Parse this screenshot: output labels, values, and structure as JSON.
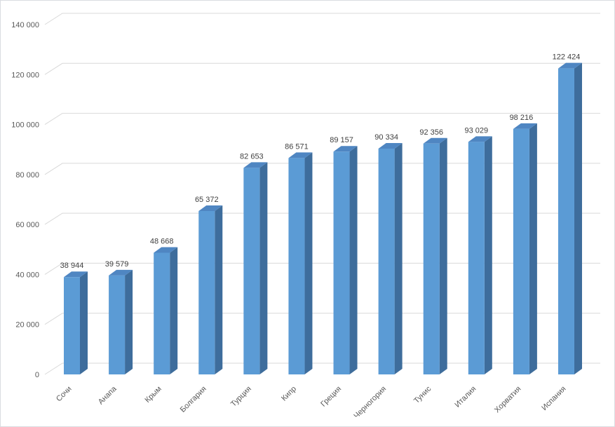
{
  "chart_data": {
    "type": "bar",
    "style": "3d-column",
    "title": "",
    "xlabel": "",
    "ylabel": "",
    "categories": [
      "Сочи",
      "Анапа",
      "Крым",
      "Болгария",
      "Турция",
      "Кипр",
      "Греция",
      "Черногория",
      "Тунис",
      "Италия",
      "Хорватия",
      "Испания"
    ],
    "values": [
      38944,
      39579,
      48668,
      65372,
      82653,
      86571,
      89157,
      90334,
      92356,
      93029,
      98216,
      122424
    ],
    "data_labels": [
      "38 944",
      "39 579",
      "48 668",
      "65 372",
      "82 653",
      "86 571",
      "89 157",
      "90 334",
      "92 356",
      "93 029",
      "98 216",
      "122 424"
    ],
    "y_ticks": [
      {
        "value": 0,
        "label": "0"
      },
      {
        "value": 20000,
        "label": "20 000"
      },
      {
        "value": 40000,
        "label": "40 000"
      },
      {
        "value": 60000,
        "label": "60 000"
      },
      {
        "value": 80000,
        "label": "80 000"
      },
      {
        "value": 100000,
        "label": "100 000"
      },
      {
        "value": 120000,
        "label": "120 000"
      },
      {
        "value": 140000,
        "label": "140 000"
      }
    ],
    "ylim": [
      0,
      140000
    ],
    "grid": true,
    "legend": "none",
    "x_label_rotation_deg": -45,
    "colors": {
      "bar_front": "#5b9bd5",
      "bar_top": "#4f86c2",
      "bar_side": "#3e6d9c",
      "gridline": "#d9d9d9",
      "axis_text": "#595959",
      "label_text": "#404040",
      "background": "#ffffff",
      "border": "#d9dce1"
    }
  }
}
